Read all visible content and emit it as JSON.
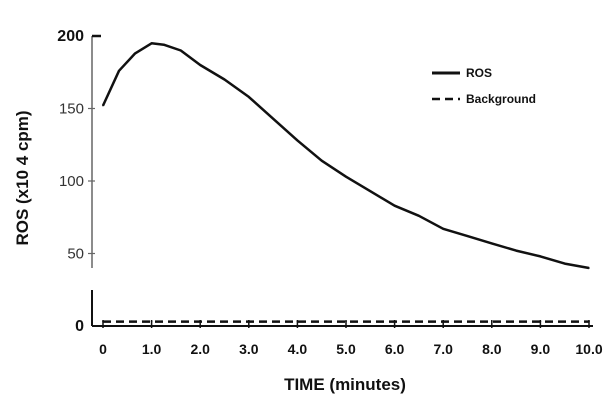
{
  "chart_data": {
    "type": "line",
    "xlabel": "TIME (minutes)",
    "ylabel": "ROS (x10 4 cpm)",
    "x_ticks": [
      "0",
      "1.0",
      "2.0",
      "3.0",
      "4.0",
      "5.0",
      "6.0",
      "7.0",
      "8.0",
      "9.0",
      "10.0"
    ],
    "y_ticks": [
      "0",
      "50",
      "100",
      "150",
      "200"
    ],
    "xlim": [
      0,
      10
    ],
    "ylim": [
      0,
      200
    ],
    "axis_break": true,
    "grid": false,
    "legend_position": "top-right",
    "series": [
      {
        "name": "ROS",
        "style": "solid",
        "x": [
          0,
          0.33,
          0.66,
          1.0,
          1.25,
          1.6,
          2.0,
          2.5,
          3.0,
          3.5,
          4.0,
          4.5,
          5.0,
          5.5,
          6.0,
          6.5,
          7.0,
          7.5,
          8.0,
          8.5,
          9.0,
          9.5,
          10.0
        ],
        "values": [
          152,
          176,
          188,
          195,
          194,
          190,
          180,
          170,
          158,
          143,
          128,
          114,
          103,
          93,
          83,
          76,
          67,
          62,
          57,
          52,
          48,
          43,
          40
        ]
      },
      {
        "name": "Background",
        "style": "dashed",
        "x": [
          0,
          1.0,
          2.0,
          3.0,
          4.0,
          5.0,
          6.0,
          7.0,
          8.0,
          9.0,
          10.0
        ],
        "values": [
          3,
          3,
          3,
          3,
          3,
          3,
          3,
          3,
          3,
          3,
          3
        ]
      }
    ]
  }
}
